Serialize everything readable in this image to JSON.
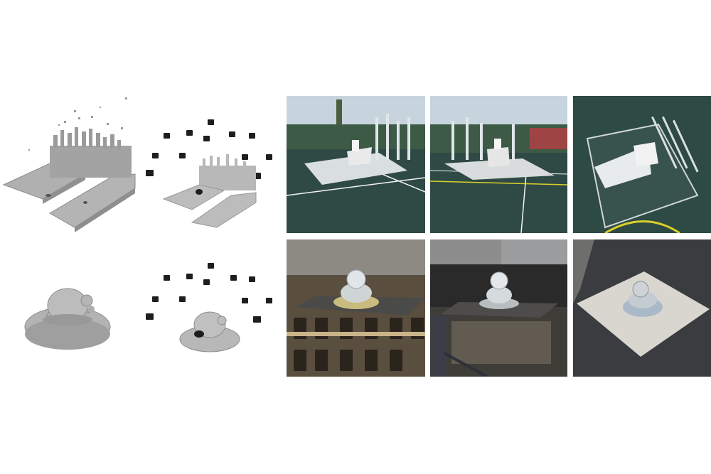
{
  "figure": {
    "rows": [
      {
        "subject": "court-scene",
        "panels": [
          "voxel-reconstruction",
          "camera-poses",
          "render-view-1",
          "render-view-2",
          "render-view-3"
        ]
      },
      {
        "subject": "glass-duck",
        "panels": [
          "voxel-reconstruction",
          "camera-poses",
          "render-view-1",
          "render-view-2",
          "render-view-3"
        ]
      }
    ]
  },
  "colors": {
    "voxel_gray": "#a8a8a8",
    "court_green": "#2f4a45",
    "court_line": "#f2f2f2",
    "court_yellow_line": "#d9cf2a",
    "sky": "#c8d4dd",
    "building_wall": "#8d8a83",
    "water_dark": "#2b2a2a",
    "asphalt": "#3a3c40",
    "render_plane": "#d8d6cf"
  }
}
